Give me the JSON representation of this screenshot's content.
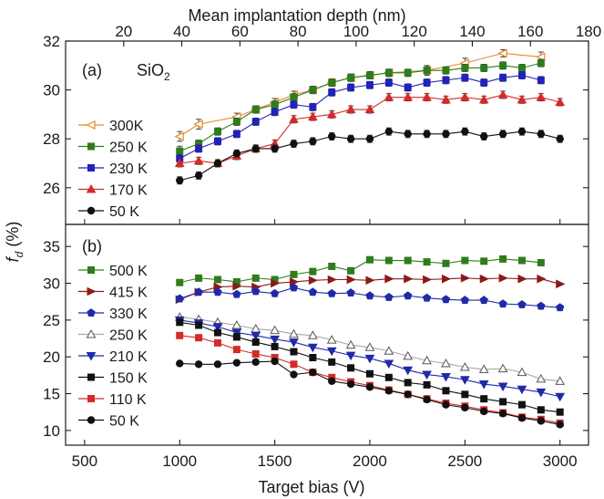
{
  "figure": {
    "top_axis_label": "Mean implantation depth (nm)",
    "bottom_axis_label": "Target bias (V)",
    "y_axis_label_main": "f",
    "y_axis_label_sub": "d",
    "y_axis_label_unit": " (%)"
  },
  "chart_data": [
    {
      "type": "line",
      "panel_label": "(a)",
      "annotation": "SiO",
      "annotation_sub": "2",
      "x_axis": {
        "label": "Mean implantation depth (nm)",
        "range": [
          0,
          180
        ],
        "ticks": [
          20,
          40,
          60,
          80,
          100,
          120,
          140,
          160,
          180
        ]
      },
      "y_axis": {
        "range": [
          24.5,
          32
        ],
        "ticks": [
          26,
          28,
          30,
          32
        ]
      },
      "legend_position": "left",
      "series": [
        {
          "name": "300K",
          "color": "#e8892c",
          "marker": "tri-left",
          "x": [
            1000,
            1100,
            1300,
            1400,
            1500,
            1600,
            1700,
            1800,
            1900,
            2000,
            2100,
            2300,
            2500,
            2700,
            2900
          ],
          "y": [
            28.1,
            28.6,
            28.9,
            29.2,
            29.5,
            29.8,
            30.0,
            30.3,
            30.5,
            30.6,
            30.7,
            30.8,
            31.1,
            31.5,
            31.35
          ],
          "err": [
            0.2,
            0.2,
            0.15,
            0.15,
            0.15,
            0.15,
            0.15,
            0.15,
            0.15,
            0.15,
            0.15,
            0.2,
            0.2,
            0.15,
            0.2
          ]
        },
        {
          "name": "250 K",
          "color": "#2e7d1c",
          "marker": "square",
          "x": [
            1000,
            1100,
            1200,
            1300,
            1400,
            1500,
            1600,
            1700,
            1800,
            1900,
            2000,
            2100,
            2200,
            2300,
            2400,
            2500,
            2600,
            2700,
            2800,
            2900
          ],
          "y": [
            27.5,
            27.8,
            28.3,
            28.7,
            29.2,
            29.4,
            29.7,
            30.0,
            30.3,
            30.5,
            30.6,
            30.7,
            30.7,
            30.8,
            30.8,
            30.9,
            30.9,
            31.0,
            30.9,
            31.1
          ],
          "err": [
            0.2,
            0.15,
            0.15,
            0.15,
            0.15,
            0.15,
            0.15,
            0.15,
            0.15,
            0.15,
            0.15,
            0.15,
            0.15,
            0.15,
            0.15,
            0.15,
            0.15,
            0.15,
            0.15,
            0.15
          ]
        },
        {
          "name": "230 K",
          "color": "#2222bb",
          "marker": "square",
          "x": [
            1000,
            1100,
            1200,
            1300,
            1400,
            1500,
            1600,
            1700,
            1800,
            1900,
            2000,
            2100,
            2200,
            2300,
            2400,
            2500,
            2600,
            2700,
            2800,
            2900
          ],
          "y": [
            27.2,
            27.6,
            27.9,
            28.2,
            28.7,
            29.1,
            29.4,
            29.3,
            29.9,
            30.1,
            30.2,
            30.3,
            30.1,
            30.3,
            30.4,
            30.5,
            30.3,
            30.5,
            30.6,
            30.4
          ],
          "err": [
            0.15,
            0.15,
            0.15,
            0.15,
            0.15,
            0.15,
            0.15,
            0.15,
            0.15,
            0.15,
            0.15,
            0.15,
            0.15,
            0.15,
            0.15,
            0.15,
            0.15,
            0.15,
            0.15,
            0.15
          ]
        },
        {
          "name": "170 K",
          "color": "#d42a2a",
          "marker": "triangle",
          "x": [
            1000,
            1100,
            1200,
            1300,
            1400,
            1500,
            1600,
            1700,
            1800,
            1900,
            2000,
            2100,
            2200,
            2300,
            2400,
            2500,
            2600,
            2700,
            2800,
            2900,
            3000
          ],
          "y": [
            27.0,
            27.1,
            27.0,
            27.3,
            27.6,
            27.8,
            28.8,
            28.9,
            29.0,
            29.2,
            29.2,
            29.7,
            29.7,
            29.7,
            29.6,
            29.7,
            29.6,
            29.8,
            29.6,
            29.7,
            29.5
          ],
          "err": [
            0.15,
            0.15,
            0.15,
            0.15,
            0.15,
            0.15,
            0.15,
            0.15,
            0.15,
            0.15,
            0.15,
            0.15,
            0.15,
            0.15,
            0.15,
            0.15,
            0.15,
            0.15,
            0.15,
            0.15,
            0.15
          ]
        },
        {
          "name": "50 K",
          "color": "#111111",
          "marker": "circle",
          "x": [
            1000,
            1100,
            1200,
            1300,
            1400,
            1500,
            1600,
            1700,
            1800,
            1900,
            2000,
            2100,
            2200,
            2300,
            2400,
            2500,
            2600,
            2700,
            2800,
            2900,
            3000
          ],
          "y": [
            26.3,
            26.5,
            27.0,
            27.4,
            27.6,
            27.6,
            27.8,
            27.9,
            28.1,
            28.0,
            28.0,
            28.3,
            28.2,
            28.2,
            28.2,
            28.3,
            28.1,
            28.2,
            28.3,
            28.2,
            28.0
          ],
          "err": [
            0.15,
            0.15,
            0.15,
            0.15,
            0.15,
            0.15,
            0.15,
            0.15,
            0.15,
            0.15,
            0.15,
            0.15,
            0.15,
            0.15,
            0.15,
            0.15,
            0.15,
            0.15,
            0.15,
            0.15,
            0.15
          ]
        }
      ]
    },
    {
      "type": "line",
      "panel_label": "(b)",
      "x_axis": {
        "label": "Target bias (V)",
        "range": [
          400,
          3150
        ],
        "ticks": [
          500,
          1000,
          1500,
          2000,
          2500,
          3000
        ]
      },
      "y_axis": {
        "range": [
          8,
          38
        ],
        "ticks": [
          10,
          15,
          20,
          25,
          30,
          35
        ]
      },
      "legend_position": "left",
      "series": [
        {
          "name": "500 K",
          "color": "#2e7d1c",
          "marker": "square",
          "x": [
            1000,
            1100,
            1200,
            1300,
            1400,
            1500,
            1600,
            1700,
            1800,
            1900,
            2000,
            2100,
            2200,
            2300,
            2400,
            2500,
            2600,
            2700,
            2800,
            2900
          ],
          "y": [
            30.1,
            30.7,
            30.5,
            30.2,
            30.7,
            30.5,
            31.2,
            31.6,
            32.3,
            31.7,
            33.2,
            33.1,
            33.1,
            32.9,
            32.7,
            33.1,
            33.0,
            33.3,
            33.1,
            32.8
          ]
        },
        {
          "name": "415 K",
          "color": "#8b1a1a",
          "marker": "tri-right",
          "x": [
            1000,
            1100,
            1200,
            1300,
            1400,
            1500,
            1600,
            1700,
            1800,
            1900,
            2000,
            2100,
            2200,
            2300,
            2400,
            2500,
            2600,
            2700,
            2800,
            2900,
            3000
          ],
          "y": [
            27.8,
            28.8,
            29.5,
            29.6,
            29.5,
            30.0,
            30.2,
            30.4,
            30.5,
            30.5,
            30.4,
            30.6,
            30.6,
            30.5,
            30.6,
            30.7,
            30.6,
            30.7,
            30.6,
            30.6,
            29.9
          ]
        },
        {
          "name": "330 K",
          "color": "#1f2aa8",
          "marker": "pentagon",
          "x": [
            1000,
            1100,
            1200,
            1300,
            1400,
            1500,
            1600,
            1700,
            1800,
            1900,
            2000,
            2100,
            2200,
            2300,
            2400,
            2500,
            2600,
            2700,
            2800,
            2900,
            3000
          ],
          "y": [
            27.9,
            28.8,
            28.8,
            28.5,
            28.9,
            28.6,
            29.4,
            28.8,
            28.6,
            28.7,
            28.3,
            28.1,
            28.3,
            28.0,
            27.8,
            27.7,
            27.7,
            27.2,
            27.1,
            26.9,
            26.7
          ]
        },
        {
          "name": "250 K",
          "color": "#a8a8a8",
          "marker": "triangle-open",
          "x": [
            1000,
            1100,
            1200,
            1300,
            1400,
            1500,
            1600,
            1700,
            1800,
            1900,
            2000,
            2100,
            2200,
            2300,
            2400,
            2500,
            2600,
            2700,
            2800,
            2900,
            3000
          ],
          "y": [
            25.4,
            25.1,
            24.7,
            24.3,
            23.8,
            23.6,
            23.1,
            22.9,
            22.3,
            21.6,
            21.3,
            20.8,
            20.1,
            19.5,
            19.1,
            18.6,
            18.3,
            18.4,
            17.9,
            17.0,
            16.7
          ]
        },
        {
          "name": "210 K",
          "color": "#1f2aa8",
          "marker": "triangle-down",
          "x": [
            1000,
            1100,
            1200,
            1300,
            1400,
            1500,
            1600,
            1700,
            1800,
            1900,
            2000,
            2100,
            2200,
            2300,
            2400,
            2500,
            2600,
            2700,
            2800,
            2900,
            3000
          ],
          "y": [
            25.0,
            24.6,
            24.1,
            23.3,
            22.9,
            22.4,
            22.0,
            21.3,
            20.8,
            20.2,
            19.8,
            19.1,
            18.2,
            17.6,
            17.3,
            16.9,
            16.3,
            16.0,
            15.6,
            15.2,
            14.6
          ]
        },
        {
          "name": "150 K",
          "color": "#111111",
          "marker": "square",
          "x": [
            1000,
            1100,
            1200,
            1300,
            1400,
            1500,
            1600,
            1700,
            1800,
            1900,
            2000,
            2100,
            2200,
            2300,
            2400,
            2500,
            2600,
            2700,
            2800,
            2900,
            3000
          ],
          "y": [
            24.7,
            24.3,
            23.3,
            22.7,
            22.0,
            21.4,
            20.7,
            19.9,
            19.3,
            18.5,
            17.7,
            17.2,
            16.5,
            16.2,
            15.4,
            14.9,
            14.3,
            13.9,
            13.5,
            12.8,
            12.5
          ]
        },
        {
          "name": "110 K",
          "color": "#d42a2a",
          "marker": "square",
          "x": [
            1000,
            1100,
            1200,
            1300,
            1400,
            1500,
            1600,
            1700,
            1800,
            1900,
            2000,
            2100,
            2200,
            2300,
            2400,
            2500,
            2600,
            2700,
            2800,
            2900,
            3000
          ],
          "y": [
            22.9,
            22.6,
            21.9,
            21.0,
            20.4,
            19.9,
            19.0,
            17.9,
            17.2,
            16.6,
            16.1,
            15.5,
            14.9,
            14.3,
            13.7,
            13.3,
            12.8,
            12.4,
            11.8,
            11.5,
            11.0
          ]
        },
        {
          "name": "50 K",
          "color": "#111111",
          "marker": "circle",
          "x": [
            1000,
            1100,
            1200,
            1300,
            1400,
            1500,
            1600,
            1700,
            1800,
            1900,
            2000,
            2100,
            2200,
            2300,
            2400,
            2500,
            2600,
            2700,
            2800,
            2900,
            3000
          ],
          "y": [
            19.1,
            19.0,
            19.0,
            19.2,
            19.3,
            19.4,
            17.6,
            17.9,
            16.7,
            16.3,
            15.9,
            15.4,
            14.9,
            14.2,
            13.5,
            13.1,
            12.6,
            12.3,
            11.7,
            11.3,
            10.8
          ]
        }
      ]
    }
  ]
}
